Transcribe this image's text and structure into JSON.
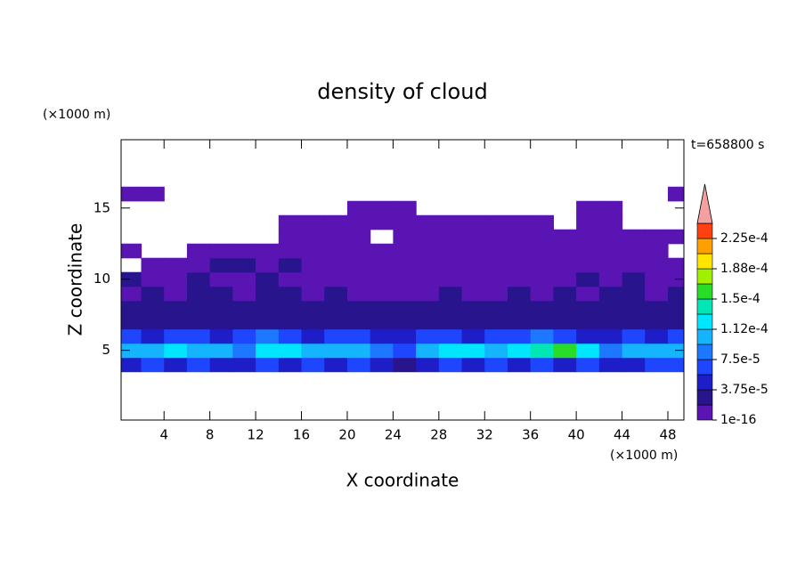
{
  "chart_data": {
    "type": "contour",
    "title": "density of cloud",
    "x_label": "X coordinate",
    "y_label": "Z coordinate",
    "x_unit": "(×1000 m)",
    "y_unit": "(×1000 m)",
    "time_label": "t=658800 s",
    "xlim": [
      0.25,
      49.4
    ],
    "ylim": [
      0.1,
      19.8
    ],
    "xticks": [
      4,
      8,
      12,
      16,
      20,
      24,
      28,
      32,
      36,
      40,
      44,
      48
    ],
    "yticks": [
      5,
      10,
      15
    ],
    "x": [
      1,
      3,
      5,
      7,
      9,
      11,
      13,
      15,
      17,
      19,
      21,
      23,
      25,
      27,
      29,
      31,
      33,
      35,
      37,
      39,
      41,
      43,
      45,
      47,
      49
    ],
    "y": [
      4,
      5,
      6,
      7,
      8,
      9,
      10,
      11,
      12,
      13,
      14,
      15,
      16
    ],
    "z": [
      [
        5e-05,
        6e-05,
        5e-05,
        6e-05,
        5e-05,
        4e-05,
        6e-05,
        5e-05,
        6e-05,
        5e-05,
        6e-05,
        5e-05,
        3e-05,
        5e-05,
        6e-05,
        5e-05,
        6e-05,
        5e-05,
        6e-05,
        5e-05,
        6e-05,
        5e-05,
        5e-05,
        6e-05,
        6e-05
      ],
      [
        0.00011,
        0.0001,
        0.00012,
        0.0001,
        0.00011,
        8e-05,
        0.00012,
        0.00012,
        0.00011,
        0.0001,
        0.00011,
        9e-05,
        6e-05,
        0.00011,
        0.00013,
        0.00012,
        0.00011,
        0.00013,
        0.00014,
        0.00015,
        0.00012,
        9e-05,
        0.00011,
        0.0001,
        0.00011
      ],
      [
        6e-05,
        5e-05,
        7e-05,
        6e-05,
        5e-05,
        7e-05,
        8e-05,
        6e-05,
        5e-05,
        6e-05,
        6e-05,
        5e-05,
        5e-05,
        6e-05,
        7e-05,
        5e-05,
        6e-05,
        7e-05,
        8e-05,
        6e-05,
        5e-05,
        4e-05,
        6e-05,
        5e-05,
        6e-05
      ],
      [
        3e-05,
        2.5e-05,
        3e-05,
        3.5e-05,
        2.5e-05,
        3e-05,
        2.5e-05,
        3e-05,
        3.5e-05,
        3e-05,
        2.5e-05,
        3e-05,
        3.5e-05,
        3e-05,
        2.5e-05,
        3e-05,
        3e-05,
        2.5e-05,
        3.5e-05,
        3e-05,
        2.5e-05,
        3e-05,
        3e-05,
        3.5e-05,
        3e-05
      ],
      [
        2.2e-05,
        2.5e-05,
        2e-05,
        2.2e-05,
        2.5e-05,
        2e-05,
        2.2e-05,
        2e-05,
        2.5e-05,
        2.2e-05,
        2e-05,
        2.2e-05,
        2.5e-05,
        2e-05,
        2.2e-05,
        2.5e-05,
        2e-05,
        2.2e-05,
        2.5e-05,
        2.2e-05,
        2e-05,
        2.2e-05,
        2e-05,
        2.5e-05,
        2.2e-05
      ],
      [
        1.5e-05,
        2e-05,
        1.5e-05,
        2e-05,
        2e-05,
        1.5e-05,
        2e-05,
        2.2e-05,
        1.5e-05,
        2e-05,
        1.5e-05,
        1.5e-05,
        1e-05,
        1.5e-05,
        2e-05,
        1.5e-05,
        1.5e-05,
        2e-05,
        1.5e-05,
        2e-05,
        1.5e-05,
        2e-05,
        2e-05,
        1.5e-05,
        2e-05
      ],
      [
        2e-05,
        1e-05,
        1e-05,
        2e-05,
        1e-05,
        1.5e-05,
        2e-05,
        1e-05,
        1.5e-05,
        1e-05,
        1e-05,
        5e-06,
        5e-06,
        5e-06,
        1e-05,
        5e-06,
        1e-05,
        5e-06,
        5e-06,
        1e-05,
        2e-05,
        1e-05,
        2e-05,
        1e-05,
        1e-05
      ],
      [
        null,
        1e-05,
        1e-05,
        5e-06,
        2e-05,
        2e-05,
        1e-05,
        2e-05,
        1e-05,
        5e-06,
        1e-05,
        5e-06,
        5e-06,
        5e-06,
        5e-06,
        5e-06,
        5e-06,
        5e-06,
        5e-06,
        5e-06,
        5e-06,
        1e-05,
        5e-06,
        1e-05,
        5e-06
      ],
      [
        5e-06,
        null,
        null,
        5e-06,
        5e-06,
        5e-06,
        5e-06,
        5e-06,
        5e-06,
        5e-06,
        5e-06,
        5e-06,
        5e-06,
        5e-06,
        5e-06,
        5e-06,
        5e-06,
        5e-06,
        5e-06,
        5e-06,
        5e-06,
        5e-06,
        5e-06,
        5e-06,
        null
      ],
      [
        null,
        null,
        null,
        null,
        null,
        null,
        null,
        5e-06,
        5e-06,
        5e-06,
        5e-06,
        null,
        5e-06,
        5e-06,
        5e-06,
        5e-06,
        5e-06,
        5e-06,
        5e-06,
        5e-06,
        5e-06,
        5e-06,
        5e-06,
        5e-06,
        5e-06
      ],
      [
        null,
        null,
        null,
        null,
        null,
        null,
        null,
        5e-06,
        5e-06,
        5e-06,
        5e-06,
        5e-06,
        5e-06,
        5e-06,
        5e-06,
        5e-06,
        5e-06,
        5e-06,
        5e-06,
        null,
        5e-06,
        5e-06,
        null,
        null,
        null
      ],
      [
        null,
        null,
        null,
        null,
        null,
        null,
        null,
        null,
        null,
        null,
        5e-06,
        5e-06,
        5e-06,
        null,
        null,
        null,
        null,
        null,
        null,
        null,
        5e-06,
        5e-06,
        null,
        null,
        null
      ],
      [
        5e-06,
        5e-06,
        null,
        null,
        null,
        null,
        null,
        null,
        null,
        null,
        null,
        null,
        null,
        null,
        null,
        null,
        null,
        null,
        null,
        null,
        null,
        null,
        null,
        null,
        5e-06
      ]
    ],
    "colorbar": {
      "levels": [
        1e-16,
        1.875e-05,
        3.75e-05,
        5.625e-05,
        7.5e-05,
        9.375e-05,
        0.0001125,
        0.00013125,
        0.00015,
        0.00016875,
        0.0001875,
        0.00020625,
        0.000225,
        0.00024375
      ],
      "colors": [
        "#5a14b4",
        "#28148c",
        "#1e1ec8",
        "#1e46ff",
        "#1e78ff",
        "#14b4ff",
        "#00e6ff",
        "#00e6b4",
        "#28dc28",
        "#a0f000",
        "#ffe600",
        "#ffa000",
        "#ff4010"
      ],
      "extend_color": "#f4a0a0",
      "ticks": [
        1e-16,
        {
          "value": 3.75e-05,
          "label": "3.75e-5"
        },
        {
          "value": 7.5e-05,
          "label": "7.5e-5"
        },
        {
          "value": 0.0001125,
          "label": "1.12e-4"
        },
        {
          "value": 0.00015,
          "label": "1.5e-4"
        },
        {
          "value": 0.0001875,
          "label": "1.88e-4"
        },
        {
          "value": 0.000225,
          "label": "2.25e-4"
        }
      ]
    }
  }
}
